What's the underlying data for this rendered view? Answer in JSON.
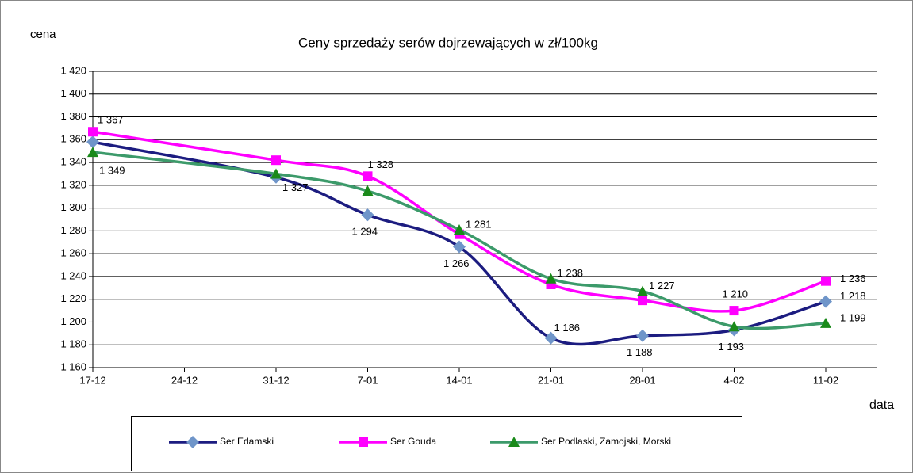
{
  "chart_data": {
    "type": "line",
    "title": "Ceny sprzedaży serów dojrzewających w zł/100kg",
    "y_label": "cena",
    "x_label": "data",
    "categories": [
      "17-12",
      "24-12",
      "31-12",
      "7-01",
      "14-01",
      "21-01",
      "28-01",
      "4-02",
      "11-02"
    ],
    "series": [
      {
        "name": "Ser Edamski",
        "color": "#1c1c80",
        "marker_color": "#6f95c9",
        "marker": "diamond",
        "values": [
          1358,
          null,
          1327,
          1294,
          1266,
          1186,
          1188,
          1193,
          1218
        ],
        "value_labels": [
          null,
          null,
          "1 327",
          "1 294",
          "1 266",
          "1 186",
          "1 188",
          "1 193",
          "1 218"
        ]
      },
      {
        "name": "Ser Gouda",
        "color": "#ff00ff",
        "marker_color": "#ff00ff",
        "marker": "square",
        "values": [
          1367,
          null,
          1342,
          1328,
          1277,
          1233,
          1219,
          1210,
          1236
        ],
        "value_labels": [
          "1 367",
          null,
          null,
          "1 328",
          null,
          null,
          null,
          "1 210",
          "1 236"
        ]
      },
      {
        "name": "Ser Podlaski, Zamojski, Morski",
        "color": "#3c9a6a",
        "marker_color": "#1a8a1a",
        "marker": "triangle",
        "values": [
          1349,
          null,
          1330,
          1315,
          1281,
          1238,
          1227,
          1196,
          1199
        ],
        "value_labels": [
          "1 349",
          null,
          null,
          null,
          "1 281",
          "1 238",
          "1 227",
          null,
          "1 199"
        ]
      }
    ],
    "ylim": [
      1160,
      1420
    ],
    "yticks": [
      {
        "value": 1160,
        "label": "1 160"
      },
      {
        "value": 1180,
        "label": "1 180"
      },
      {
        "value": 1200,
        "label": "1 200"
      },
      {
        "value": 1220,
        "label": "1 220"
      },
      {
        "value": 1240,
        "label": "1 240"
      },
      {
        "value": 1260,
        "label": "1 260"
      },
      {
        "value": 1280,
        "label": "1 280"
      },
      {
        "value": 1300,
        "label": "1 300"
      },
      {
        "value": 1320,
        "label": "1 320"
      },
      {
        "value": 1340,
        "label": "1 340"
      },
      {
        "value": 1360,
        "label": "1 360"
      },
      {
        "value": 1380,
        "label": "1 380"
      },
      {
        "value": 1400,
        "label": "1 400"
      },
      {
        "value": 1420,
        "label": "1 420"
      }
    ],
    "grid": true,
    "smooth": true,
    "legend": "bottom"
  }
}
